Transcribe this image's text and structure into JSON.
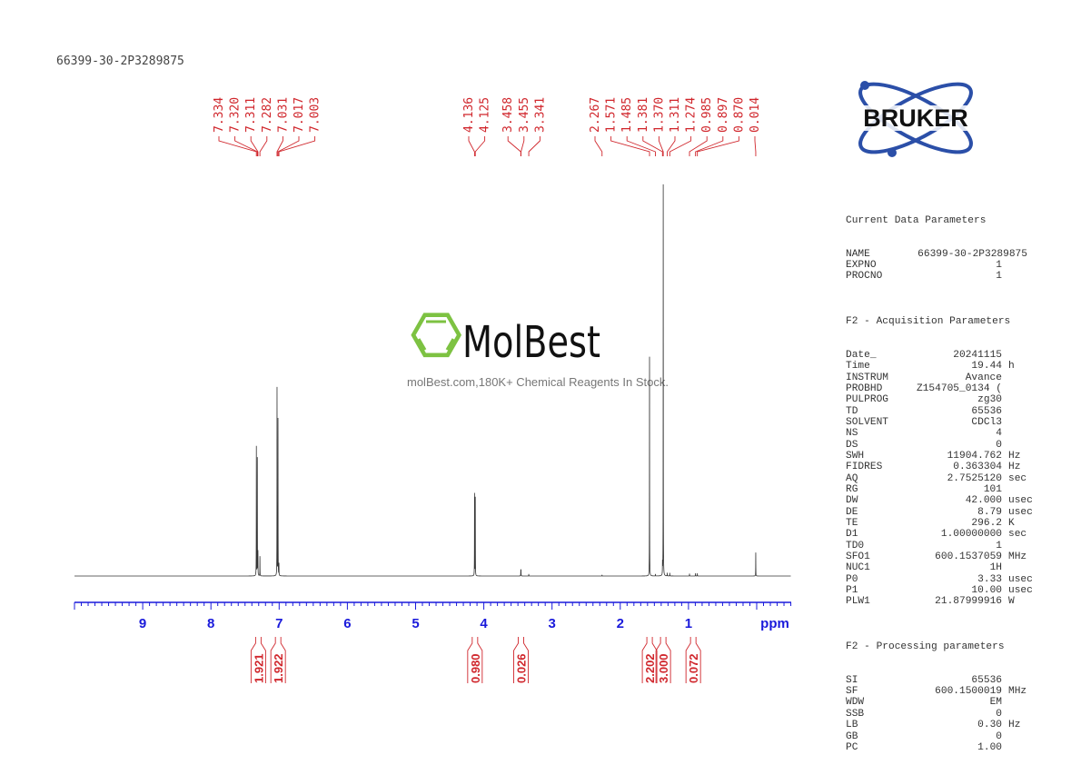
{
  "sample_name": "66399-30-2P3289875",
  "watermark": {
    "brand": "MolBest",
    "tagline": "molBest.com,180K+ Chemical Reagents In Stock.",
    "color": "#7dc242"
  },
  "logo": {
    "text": "BRUKER",
    "color": "#2b4fa8"
  },
  "parameters": {
    "current": {
      "title": "Current Data Parameters",
      "rows": [
        {
          "k": "NAME",
          "v": "66399-30-2P3289875",
          "u": ""
        },
        {
          "k": "EXPNO",
          "v": "1",
          "u": ""
        },
        {
          "k": "PROCNO",
          "v": "1",
          "u": ""
        }
      ]
    },
    "acquisition": {
      "title": "F2 - Acquisition Parameters",
      "rows": [
        {
          "k": "Date_",
          "v": "20241115",
          "u": ""
        },
        {
          "k": "Time",
          "v": "19.44",
          "u": "h"
        },
        {
          "k": "INSTRUM",
          "v": "Avance",
          "u": ""
        },
        {
          "k": "PROBHD",
          "v": "Z154705_0134 (",
          "u": ""
        },
        {
          "k": "PULPROG",
          "v": "zg30",
          "u": ""
        },
        {
          "k": "TD",
          "v": "65536",
          "u": ""
        },
        {
          "k": "SOLVENT",
          "v": "CDCl3",
          "u": ""
        },
        {
          "k": "NS",
          "v": "4",
          "u": ""
        },
        {
          "k": "DS",
          "v": "0",
          "u": ""
        },
        {
          "k": "SWH",
          "v": "11904.762",
          "u": "Hz"
        },
        {
          "k": "FIDRES",
          "v": "0.363304",
          "u": "Hz"
        },
        {
          "k": "AQ",
          "v": "2.7525120",
          "u": "sec"
        },
        {
          "k": "RG",
          "v": "101",
          "u": ""
        },
        {
          "k": "DW",
          "v": "42.000",
          "u": "usec"
        },
        {
          "k": "DE",
          "v": "8.79",
          "u": "usec"
        },
        {
          "k": "TE",
          "v": "296.2",
          "u": "K"
        },
        {
          "k": "D1",
          "v": "1.00000000",
          "u": "sec"
        },
        {
          "k": "TD0",
          "v": "1",
          "u": ""
        },
        {
          "k": "SFO1",
          "v": "600.1537059",
          "u": "MHz"
        },
        {
          "k": "NUC1",
          "v": "1H",
          "u": ""
        },
        {
          "k": "P0",
          "v": "3.33",
          "u": "usec"
        },
        {
          "k": "P1",
          "v": "10.00",
          "u": "usec"
        },
        {
          "k": "PLW1",
          "v": "21.87999916",
          "u": "W"
        }
      ]
    },
    "processing": {
      "title": "F2 - Processing parameters",
      "rows": [
        {
          "k": "SI",
          "v": "65536",
          "u": ""
        },
        {
          "k": "SF",
          "v": "600.1500019",
          "u": "MHz"
        },
        {
          "k": "WDW",
          "v": "EM",
          "u": ""
        },
        {
          "k": "SSB",
          "v": "0",
          "u": ""
        },
        {
          "k": "LB",
          "v": "0.30",
          "u": "Hz"
        },
        {
          "k": "GB",
          "v": "0",
          "u": ""
        },
        {
          "k": "PC",
          "v": "1.00",
          "u": ""
        }
      ]
    }
  },
  "chart_data": {
    "type": "line",
    "xlabel": "ppm",
    "xlim": [
      10.0,
      -0.5
    ],
    "x_ticks": [
      "9",
      "8",
      "7",
      "6",
      "5",
      "4",
      "3",
      "2",
      "1"
    ],
    "axis_color": "#1a1adb",
    "label_color": "#d0262c",
    "peaks": [
      {
        "ppm": 7.334,
        "intensity": 33
      },
      {
        "ppm": 7.32,
        "intensity": 30
      },
      {
        "ppm": 7.311,
        "intensity": 6
      },
      {
        "ppm": 7.282,
        "intensity": 5
      },
      {
        "ppm": 7.031,
        "intensity": 48
      },
      {
        "ppm": 7.017,
        "intensity": 40
      },
      {
        "ppm": 7.003,
        "intensity": 3
      },
      {
        "ppm": 4.136,
        "intensity": 21
      },
      {
        "ppm": 4.125,
        "intensity": 20
      },
      {
        "ppm": 3.458,
        "intensity": 1.5
      },
      {
        "ppm": 3.455,
        "intensity": 1.5
      },
      {
        "ppm": 3.341,
        "intensity": 0.5
      },
      {
        "ppm": 2.267,
        "intensity": 0.3
      },
      {
        "ppm": 1.571,
        "intensity": 56
      },
      {
        "ppm": 1.485,
        "intensity": 0.5
      },
      {
        "ppm": 1.381,
        "intensity": 3
      },
      {
        "ppm": 1.37,
        "intensity": 100
      },
      {
        "ppm": 1.311,
        "intensity": 0.8
      },
      {
        "ppm": 1.274,
        "intensity": 0.8
      },
      {
        "ppm": 0.985,
        "intensity": 0.6
      },
      {
        "ppm": 0.897,
        "intensity": 0.7
      },
      {
        "ppm": 0.87,
        "intensity": 0.7
      },
      {
        "ppm": 0.014,
        "intensity": 6
      }
    ],
    "peak_label_groups": [
      [
        "7.334",
        "7.320",
        "7.311",
        "7.282",
        "7.031",
        "7.017",
        "7.003"
      ],
      [
        "4.136",
        "4.125",
        "3.458",
        "3.455",
        "3.341"
      ],
      [
        "2.267",
        "1.571",
        "1.485",
        "1.381",
        "1.370",
        "1.311",
        "1.274",
        "0.985",
        "0.897",
        "0.870",
        "0.014"
      ]
    ],
    "integrals": [
      {
        "from": 7.36,
        "to": 7.25,
        "value": "1.921"
      },
      {
        "from": 7.06,
        "to": 6.97,
        "value": "1.922"
      },
      {
        "from": 4.17,
        "to": 4.09,
        "value": "0.980"
      },
      {
        "from": 3.49,
        "to": 3.42,
        "value": "0.026"
      },
      {
        "from": 1.62,
        "to": 1.52,
        "value": "2.202"
      },
      {
        "from": 1.42,
        "to": 1.32,
        "value": "3.000"
      },
      {
        "from": 1.02,
        "to": 0.84,
        "value": "0.072"
      }
    ]
  }
}
